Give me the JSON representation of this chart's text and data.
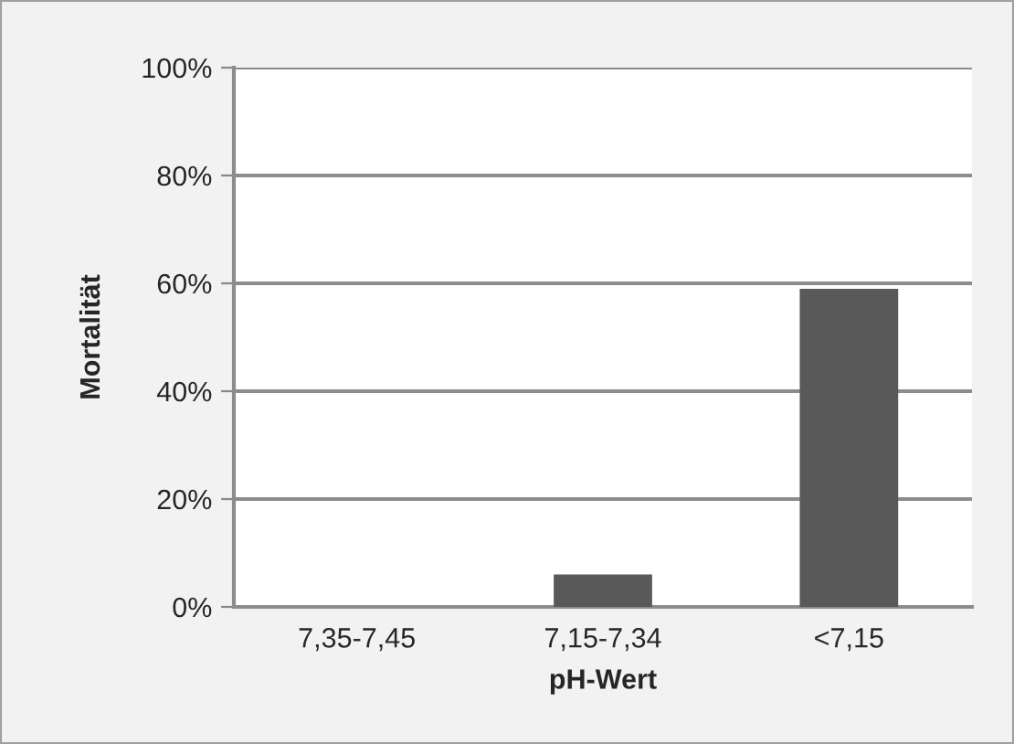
{
  "chart_data": {
    "type": "bar",
    "xlabel": "pH-Wert",
    "ylabel": "Mortalität",
    "categories": [
      "7,35-7,45",
      "7,15-7,34",
      "<7,15"
    ],
    "values": [
      0,
      6,
      59
    ],
    "color": "#595959",
    "ylim": [
      0,
      100
    ],
    "yticks": [
      {
        "value": 0,
        "label": "0%"
      },
      {
        "value": 20,
        "label": "20%"
      },
      {
        "value": 40,
        "label": "40%"
      },
      {
        "value": 60,
        "label": "60%"
      },
      {
        "value": 80,
        "label": "80%"
      },
      {
        "value": 100,
        "label": "100%"
      }
    ],
    "grid": "y"
  }
}
